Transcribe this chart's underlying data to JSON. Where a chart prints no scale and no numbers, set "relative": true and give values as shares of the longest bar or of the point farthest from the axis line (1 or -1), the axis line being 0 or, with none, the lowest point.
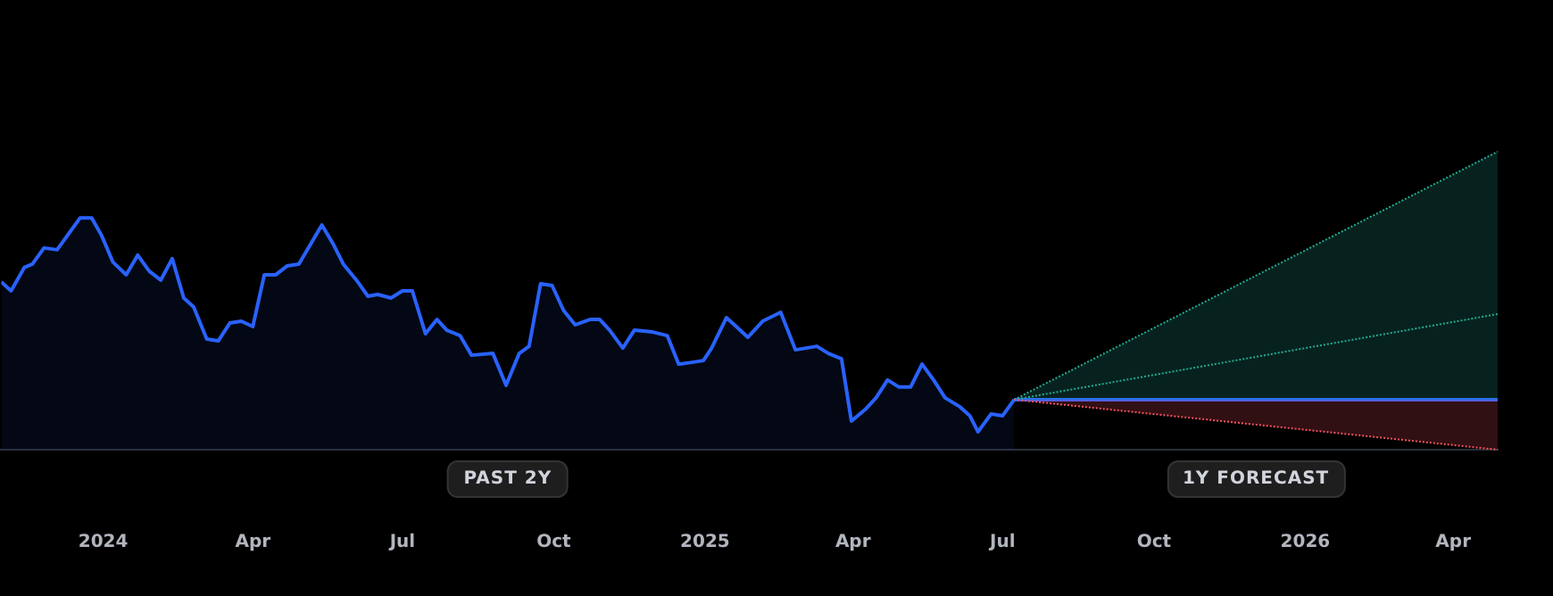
{
  "chart_data": {
    "type": "line",
    "relative": true,
    "legend": false,
    "grid": false,
    "xlim": [
      "2023-10-31",
      "2026-04-28"
    ],
    "xticks": [
      {
        "value": "2024-01-01",
        "label": "2024"
      },
      {
        "value": "2024-04-01",
        "label": "Apr"
      },
      {
        "value": "2024-07-01",
        "label": "Jul"
      },
      {
        "value": "2024-10-01",
        "label": "Oct"
      },
      {
        "value": "2025-01-01",
        "label": "2025"
      },
      {
        "value": "2025-04-01",
        "label": "Apr"
      },
      {
        "value": "2025-07-01",
        "label": "Jul"
      },
      {
        "value": "2025-10-01",
        "label": "Oct"
      },
      {
        "value": "2026-01-01",
        "label": "2026"
      },
      {
        "value": "2026-04-01",
        "label": "Apr"
      }
    ],
    "annotations": [
      "PAST 2Y",
      "1Y FORECAST"
    ],
    "series": [
      {
        "type": "area",
        "color": "#2962ff",
        "x": [
          "2023-10-31",
          "2023-11-06",
          "2023-11-14",
          "2023-11-19",
          "2023-11-26",
          "2023-12-04",
          "2023-12-18",
          "2023-12-25",
          "2023-12-31",
          "2024-01-07",
          "2024-01-15",
          "2024-01-22",
          "2024-01-29",
          "2024-02-05",
          "2024-02-12",
          "2024-02-19",
          "2024-02-25",
          "2024-03-04",
          "2024-03-11",
          "2024-03-18",
          "2024-03-25",
          "2024-04-01",
          "2024-04-08",
          "2024-04-15",
          "2024-04-22",
          "2024-04-29",
          "2024-05-13",
          "2024-05-20",
          "2024-05-26",
          "2024-06-03",
          "2024-06-10",
          "2024-06-16",
          "2024-06-24",
          "2024-07-01",
          "2024-07-07",
          "2024-07-15",
          "2024-07-22",
          "2024-07-28",
          "2024-08-05",
          "2024-08-12",
          "2024-08-25",
          "2024-09-02",
          "2024-09-10",
          "2024-09-16",
          "2024-09-23",
          "2024-09-30",
          "2024-10-07",
          "2024-10-14",
          "2024-10-23",
          "2024-10-29",
          "2024-11-04",
          "2024-11-12",
          "2024-11-19",
          "2024-11-30",
          "2024-12-09",
          "2024-12-16",
          "2024-12-24",
          "2024-12-31",
          "2025-01-05",
          "2025-01-14",
          "2025-01-20",
          "2025-01-27",
          "2025-02-05",
          "2025-02-16",
          "2025-02-25",
          "2025-03-10",
          "2025-03-17",
          "2025-03-25",
          "2025-03-31",
          "2025-04-09",
          "2025-04-15",
          "2025-04-22",
          "2025-04-29",
          "2025-05-06",
          "2025-05-13",
          "2025-05-20",
          "2025-05-27",
          "2025-06-05",
          "2025-06-11",
          "2025-06-16",
          "2025-06-24",
          "2025-07-01",
          "2025-07-08"
        ],
        "values": [
          0.563,
          0.533,
          0.611,
          0.623,
          0.677,
          0.671,
          0.778,
          0.778,
          0.719,
          0.629,
          0.587,
          0.653,
          0.599,
          0.569,
          0.641,
          0.509,
          0.479,
          0.371,
          0.365,
          0.425,
          0.431,
          0.413,
          0.587,
          0.587,
          0.617,
          0.623,
          0.754,
          0.689,
          0.623,
          0.569,
          0.515,
          0.521,
          0.509,
          0.533,
          0.533,
          0.389,
          0.437,
          0.401,
          0.383,
          0.317,
          0.323,
          0.216,
          0.323,
          0.347,
          0.557,
          0.551,
          0.467,
          0.419,
          0.437,
          0.437,
          0.401,
          0.341,
          0.401,
          0.395,
          0.383,
          0.287,
          0.293,
          0.299,
          0.341,
          0.443,
          0.413,
          0.377,
          0.431,
          0.461,
          0.335,
          0.347,
          0.323,
          0.305,
          0.096,
          0.138,
          0.174,
          0.234,
          0.21,
          0.21,
          0.287,
          0.234,
          0.174,
          0.144,
          0.114,
          0.06,
          0.12,
          0.114,
          0.168
        ]
      },
      {
        "type": "line",
        "color": "#2962ff",
        "x": [
          "2025-07-08",
          "2026-04-28"
        ],
        "values": [
          0.168,
          0.168
        ]
      },
      {
        "type": "area",
        "color": "#22ab94",
        "line_style": "dotted",
        "x": [
          "2025-07-08",
          "2026-04-28"
        ],
        "values": [
          0.168,
          1
        ]
      },
      {
        "type": "line",
        "color": "#22ab94",
        "line_style": "dotted",
        "x": [
          "2025-07-08",
          "2026-04-28"
        ],
        "values": [
          0.168,
          0.455
        ]
      },
      {
        "type": "area",
        "color": "#f7525f",
        "line_style": "dotted",
        "x": [
          "2025-07-08",
          "2026-04-28"
        ],
        "values": [
          0.168,
          0
        ]
      }
    ]
  }
}
